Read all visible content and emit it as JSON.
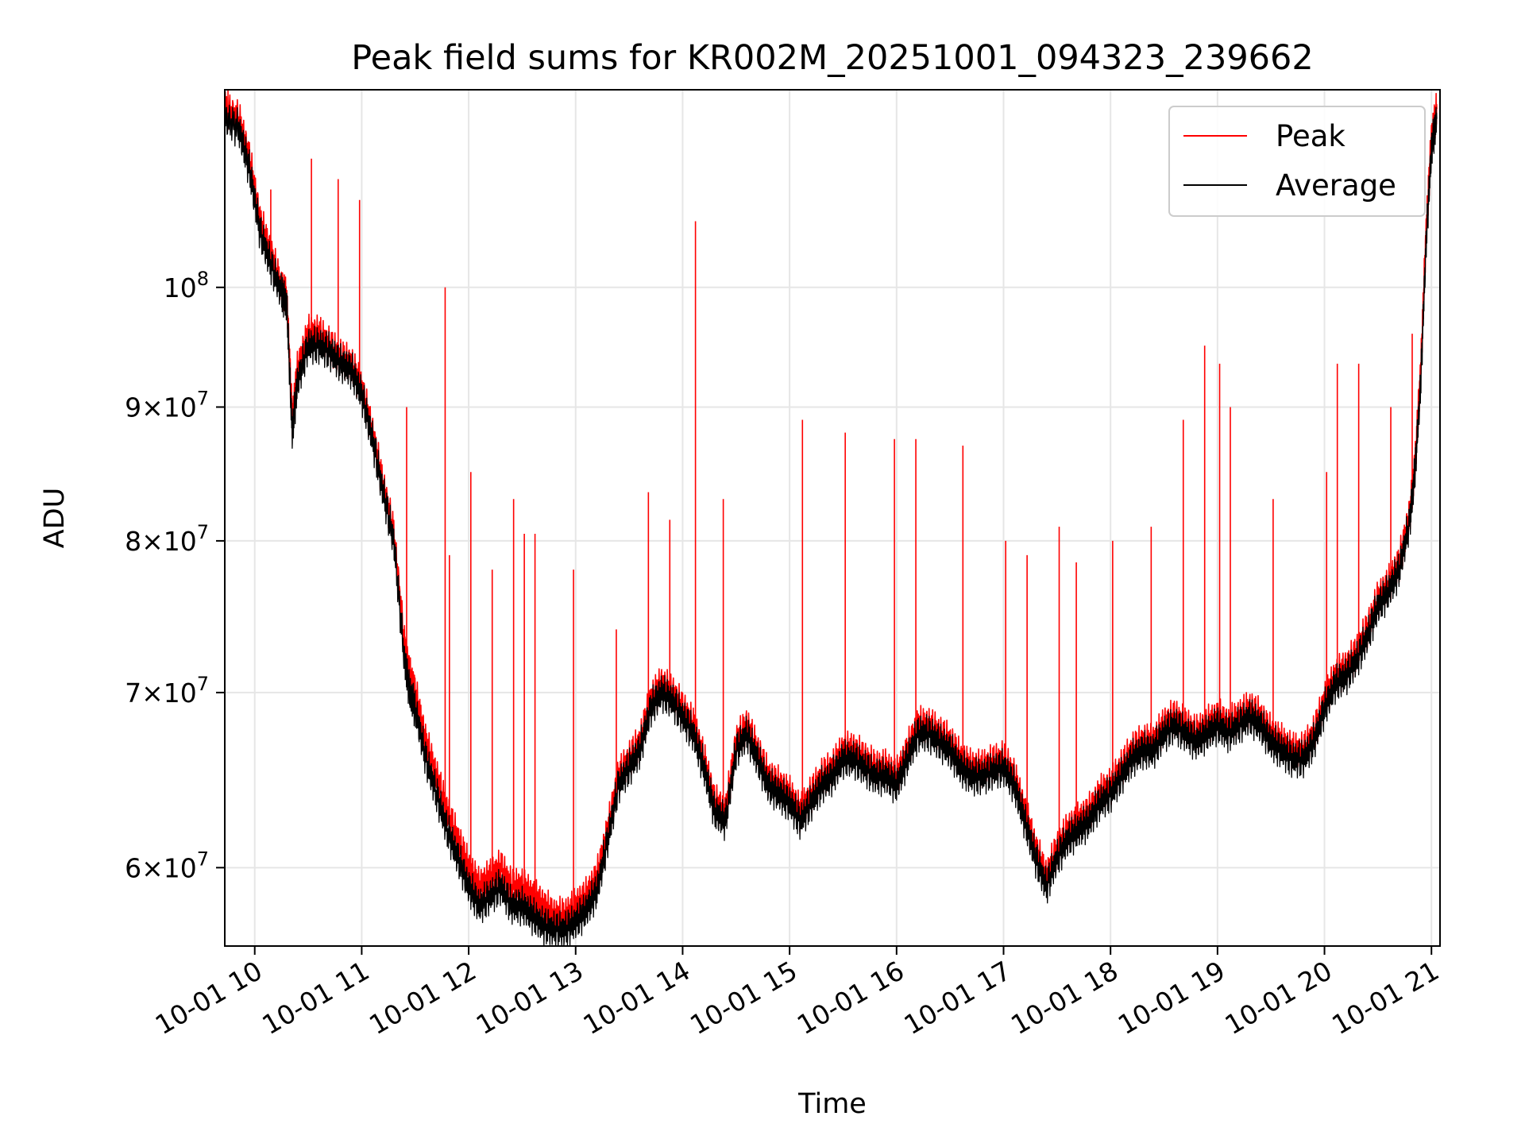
{
  "chart_data": {
    "type": "line",
    "title": "Peak field sums for KR002M_20251001_094323_239662",
    "xlabel": "Time",
    "ylabel": "ADU",
    "yscale": "log",
    "xlim": [
      9.72,
      21.08
    ],
    "ylim": [
      56000000,
      119000000
    ],
    "grid": true,
    "x_ticks": [
      {
        "value": 10,
        "label": "10-01 10"
      },
      {
        "value": 11,
        "label": "10-01 11"
      },
      {
        "value": 12,
        "label": "10-01 12"
      },
      {
        "value": 13,
        "label": "10-01 13"
      },
      {
        "value": 14,
        "label": "10-01 14"
      },
      {
        "value": 15,
        "label": "10-01 15"
      },
      {
        "value": 16,
        "label": "10-01 16"
      },
      {
        "value": 17,
        "label": "10-01 17"
      },
      {
        "value": 18,
        "label": "10-01 18"
      },
      {
        "value": 19,
        "label": "10-01 19"
      },
      {
        "value": 20,
        "label": "10-01 20"
      },
      {
        "value": 21,
        "label": "10-01 21"
      }
    ],
    "y_ticks": [
      {
        "value": 60000000,
        "mantissa": "6",
        "exponent": "7"
      },
      {
        "value": 70000000,
        "mantissa": "7",
        "exponent": "7"
      },
      {
        "value": 80000000,
        "mantissa": "8",
        "exponent": "7"
      },
      {
        "value": 90000000,
        "mantissa": "9",
        "exponent": "7"
      },
      {
        "value": 100000000,
        "mantissa": "",
        "exponent": "8"
      }
    ],
    "tick_base": "10",
    "tick_times": "×",
    "legend": {
      "position": "upper right",
      "entries": [
        "Peak",
        "Average"
      ]
    },
    "series": [
      {
        "name": "Peak",
        "color": "#ff0000",
        "x": [
          9.72,
          9.85,
          9.95,
          10.05,
          10.15,
          10.25,
          10.3,
          10.35,
          10.4,
          10.5,
          10.6,
          10.7,
          10.8,
          10.9,
          11.0,
          11.1,
          11.2,
          11.3,
          11.4,
          11.45,
          11.5,
          11.6,
          11.7,
          11.8,
          11.9,
          12.0,
          12.1,
          12.2,
          12.3,
          12.4,
          12.5,
          12.6,
          12.7,
          12.8,
          12.9,
          13.0,
          13.1,
          13.2,
          13.3,
          13.4,
          13.5,
          13.6,
          13.7,
          13.8,
          13.9,
          14.0,
          14.1,
          14.2,
          14.3,
          14.4,
          14.5,
          14.6,
          14.7,
          14.8,
          14.9,
          15.0,
          15.1,
          15.2,
          15.3,
          15.4,
          15.5,
          15.6,
          15.7,
          15.8,
          15.9,
          16.0,
          16.1,
          16.2,
          16.3,
          16.4,
          16.5,
          16.6,
          16.7,
          16.8,
          16.9,
          17.0,
          17.1,
          17.2,
          17.3,
          17.4,
          17.5,
          17.6,
          17.7,
          17.8,
          17.9,
          18.0,
          18.1,
          18.2,
          18.3,
          18.4,
          18.5,
          18.6,
          18.7,
          18.8,
          18.9,
          19.0,
          19.1,
          19.2,
          19.3,
          19.4,
          19.5,
          19.6,
          19.7,
          19.8,
          19.9,
          20.0,
          20.1,
          20.2,
          20.3,
          20.4,
          20.5,
          20.6,
          20.7,
          20.8,
          20.85,
          20.9,
          20.95,
          21.0,
          21.05
        ],
        "values": [
          117000000,
          116000000,
          112000000,
          106000000,
          103000000,
          100000000,
          99000000,
          89000000,
          93000000,
          96000000,
          96000000,
          95000000,
          94000000,
          93500000,
          91500000,
          88000000,
          84000000,
          80500000,
          73000000,
          71000000,
          70000000,
          67000000,
          65000000,
          63000000,
          61500000,
          60000000,
          59000000,
          59500000,
          60000000,
          59000000,
          59000000,
          58500000,
          58000000,
          57500000,
          57500000,
          58000000,
          58500000,
          59500000,
          62000000,
          65000000,
          66000000,
          67000000,
          69500000,
          70500000,
          70000000,
          69000000,
          68000000,
          66000000,
          63500000,
          63000000,
          67000000,
          68000000,
          66500000,
          65000000,
          64500000,
          64000000,
          63000000,
          64000000,
          65000000,
          65500000,
          66500000,
          66500000,
          66000000,
          65500000,
          65500000,
          65000000,
          66500000,
          68000000,
          68000000,
          67500000,
          67000000,
          66000000,
          65500000,
          65500000,
          65800000,
          66000000,
          65000000,
          63000000,
          61000000,
          59500000,
          61000000,
          62000000,
          62500000,
          63000000,
          64000000,
          64500000,
          65500000,
          66500000,
          67000000,
          67000000,
          68000000,
          68500000,
          68000000,
          67500000,
          68000000,
          68500000,
          68000000,
          68500000,
          69000000,
          68500000,
          67500000,
          67000000,
          66500000,
          66500000,
          67500000,
          69500000,
          71000000,
          71500000,
          72500000,
          74000000,
          76000000,
          77000000,
          78500000,
          82000000,
          86000000,
          93000000,
          105000000,
          114000000,
          117000000
        ],
        "spikes": [
          {
            "x": 9.75,
            "y": 119000000
          },
          {
            "x": 10.15,
            "y": 109000000
          },
          {
            "x": 10.53,
            "y": 112000000
          },
          {
            "x": 10.78,
            "y": 110000000
          },
          {
            "x": 10.98,
            "y": 108000000
          },
          {
            "x": 11.42,
            "y": 90000000
          },
          {
            "x": 11.78,
            "y": 100000000
          },
          {
            "x": 11.82,
            "y": 79000000
          },
          {
            "x": 12.02,
            "y": 85000000
          },
          {
            "x": 12.22,
            "y": 78000000
          },
          {
            "x": 12.42,
            "y": 83000000
          },
          {
            "x": 12.52,
            "y": 80500000
          },
          {
            "x": 12.62,
            "y": 80500000
          },
          {
            "x": 12.98,
            "y": 78000000
          },
          {
            "x": 13.38,
            "y": 74000000
          },
          {
            "x": 13.68,
            "y": 83500000
          },
          {
            "x": 13.88,
            "y": 81500000
          },
          {
            "x": 14.12,
            "y": 106000000
          },
          {
            "x": 14.38,
            "y": 83000000
          },
          {
            "x": 15.12,
            "y": 89000000
          },
          {
            "x": 15.52,
            "y": 88000000
          },
          {
            "x": 15.98,
            "y": 87500000
          },
          {
            "x": 16.18,
            "y": 87500000
          },
          {
            "x": 16.62,
            "y": 87000000
          },
          {
            "x": 17.02,
            "y": 80000000
          },
          {
            "x": 17.22,
            "y": 79000000
          },
          {
            "x": 17.52,
            "y": 81000000
          },
          {
            "x": 17.68,
            "y": 78500000
          },
          {
            "x": 18.02,
            "y": 80000000
          },
          {
            "x": 18.38,
            "y": 81000000
          },
          {
            "x": 18.68,
            "y": 89000000
          },
          {
            "x": 18.88,
            "y": 95000000
          },
          {
            "x": 19.02,
            "y": 93500000
          },
          {
            "x": 19.12,
            "y": 90000000
          },
          {
            "x": 19.52,
            "y": 83000000
          },
          {
            "x": 20.02,
            "y": 85000000
          },
          {
            "x": 20.12,
            "y": 93500000
          },
          {
            "x": 20.32,
            "y": 93500000
          },
          {
            "x": 20.62,
            "y": 90000000
          },
          {
            "x": 20.82,
            "y": 96000000
          }
        ]
      },
      {
        "name": "Average",
        "color": "#000000",
        "x": [
          9.72,
          9.85,
          9.95,
          10.05,
          10.15,
          10.25,
          10.3,
          10.35,
          10.4,
          10.5,
          10.6,
          10.7,
          10.8,
          10.9,
          11.0,
          11.1,
          11.2,
          11.3,
          11.4,
          11.45,
          11.5,
          11.6,
          11.7,
          11.8,
          11.9,
          12.0,
          12.1,
          12.2,
          12.3,
          12.4,
          12.5,
          12.6,
          12.7,
          12.8,
          12.9,
          13.0,
          13.1,
          13.2,
          13.3,
          13.4,
          13.5,
          13.6,
          13.7,
          13.8,
          13.9,
          14.0,
          14.1,
          14.2,
          14.3,
          14.4,
          14.5,
          14.6,
          14.7,
          14.8,
          14.9,
          15.0,
          15.1,
          15.2,
          15.3,
          15.4,
          15.5,
          15.6,
          15.7,
          15.8,
          15.9,
          16.0,
          16.1,
          16.2,
          16.3,
          16.4,
          16.5,
          16.6,
          16.7,
          16.8,
          16.9,
          17.0,
          17.1,
          17.2,
          17.3,
          17.4,
          17.5,
          17.6,
          17.7,
          17.8,
          17.9,
          18.0,
          18.1,
          18.2,
          18.3,
          18.4,
          18.5,
          18.6,
          18.7,
          18.8,
          18.9,
          19.0,
          19.1,
          19.2,
          19.3,
          19.4,
          19.5,
          19.6,
          19.7,
          19.8,
          19.9,
          20.0,
          20.1,
          20.2,
          20.3,
          20.4,
          20.5,
          20.6,
          20.7,
          20.8,
          20.85,
          20.9,
          20.95,
          21.0,
          21.05
        ],
        "values": [
          116000000,
          115000000,
          111000000,
          105000000,
          102000000,
          99500000,
          98500000,
          88000000,
          92000000,
          95000000,
          95000000,
          94500000,
          93500000,
          93000000,
          91000000,
          87500000,
          83500000,
          80000000,
          72000000,
          70000000,
          69000000,
          66000000,
          64000000,
          62000000,
          60500000,
          59000000,
          58000000,
          58500000,
          59000000,
          58000000,
          58000000,
          57500000,
          57000000,
          56800000,
          56800000,
          57200000,
          57800000,
          58800000,
          61500000,
          64500000,
          65500000,
          66500000,
          69000000,
          70000000,
          69500000,
          68500000,
          67500000,
          65500000,
          63000000,
          62500000,
          66500000,
          67500000,
          66000000,
          64500000,
          64000000,
          63500000,
          62500000,
          63500000,
          64500000,
          65000000,
          66000000,
          66000000,
          65500000,
          65000000,
          65000000,
          64500000,
          66000000,
          67500000,
          67500000,
          67000000,
          66500000,
          65500000,
          65000000,
          65000000,
          65300000,
          65500000,
          64500000,
          62500000,
          60500000,
          59000000,
          60500000,
          61500000,
          62000000,
          62500000,
          63500000,
          64000000,
          65000000,
          66000000,
          66500000,
          66500000,
          67500000,
          68000000,
          67500000,
          67000000,
          67500000,
          68000000,
          67500000,
          68000000,
          68500000,
          68000000,
          67000000,
          66500000,
          66000000,
          66000000,
          67000000,
          69000000,
          70500000,
          71000000,
          72000000,
          73500000,
          75500000,
          76500000,
          78000000,
          81500000,
          85500000,
          92000000,
          104000000,
          113000000,
          116000000
        ],
        "spikes": []
      }
    ]
  }
}
